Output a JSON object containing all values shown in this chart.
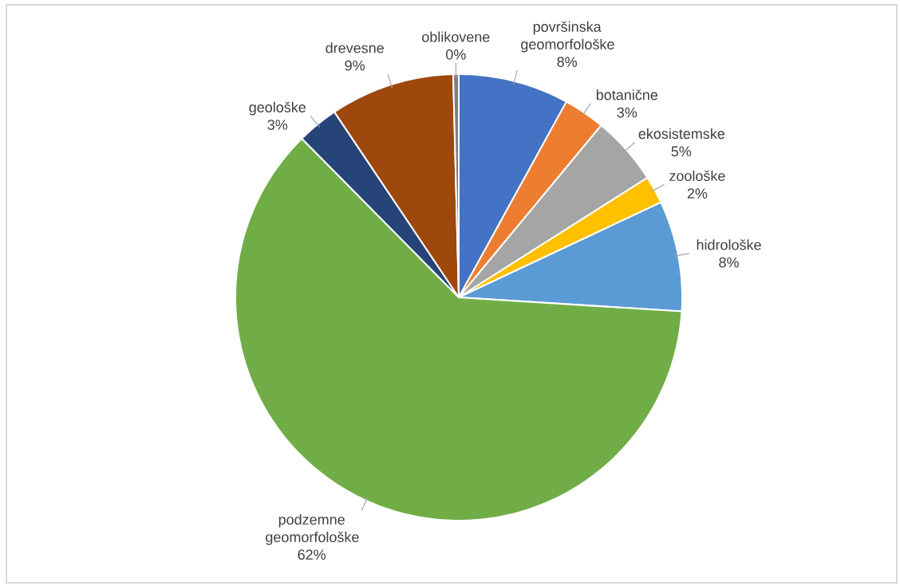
{
  "chart_data": {
    "type": "pie",
    "categories": [
      "površinska geomorfološke",
      "botanične",
      "ekosistemske",
      "zoološke",
      "hidrološke",
      "podzemne geomorfološke",
      "geološke",
      "drevesne",
      "oblikovene"
    ],
    "values": [
      8,
      3,
      5,
      2,
      8,
      61.6,
      3,
      9,
      0.4
    ],
    "value_labels": [
      "8%",
      "3%",
      "5%",
      "2%",
      "8%",
      "62%",
      "3%",
      "9%",
      "0%"
    ],
    "colors": [
      "#4472c4",
      "#ed7d31",
      "#a5a5a5",
      "#ffc000",
      "#5b9bd5",
      "#70ad47",
      "#264478",
      "#9e480e",
      "#7f7f7f"
    ]
  }
}
